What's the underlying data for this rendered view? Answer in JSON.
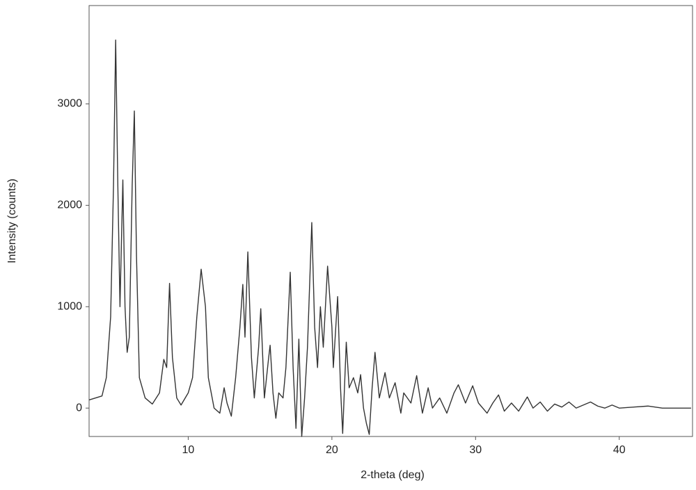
{
  "chart_data": {
    "type": "line",
    "xlabel": "2-theta (deg)",
    "ylabel": "Intensity (counts)",
    "xlim": [
      3.1,
      45.1
    ],
    "ylim": [
      -280,
      3970
    ],
    "xticks": [
      10,
      20,
      30,
      40
    ],
    "yticks": [
      0,
      1000,
      2000,
      3000
    ],
    "grid": false,
    "series": [
      {
        "color": "#333333",
        "x": [
          3.1,
          4.0,
          4.3,
          4.6,
          4.8,
          4.95,
          5.1,
          5.25,
          5.45,
          5.6,
          5.75,
          5.9,
          6.1,
          6.25,
          6.4,
          6.6,
          7.0,
          7.5,
          8.0,
          8.3,
          8.5,
          8.7,
          8.9,
          9.2,
          9.5,
          10.0,
          10.3,
          10.6,
          10.9,
          11.2,
          11.4,
          11.8,
          12.2,
          12.5,
          12.7,
          13.0,
          13.3,
          13.6,
          13.8,
          13.95,
          14.15,
          14.4,
          14.6,
          14.9,
          15.05,
          15.3,
          15.6,
          15.7,
          15.9,
          16.1,
          16.3,
          16.6,
          16.8,
          17.1,
          17.3,
          17.5,
          17.7,
          17.9,
          18.1,
          18.3,
          18.6,
          18.8,
          19.0,
          19.2,
          19.4,
          19.7,
          20.0,
          20.1,
          20.4,
          20.6,
          20.75,
          21.0,
          21.2,
          21.5,
          21.8,
          22.0,
          22.2,
          22.4,
          22.6,
          22.8,
          23.0,
          23.3,
          23.7,
          24.0,
          24.4,
          24.8,
          25.0,
          25.5,
          25.9,
          26.3,
          26.7,
          27.0,
          27.5,
          28.0,
          28.5,
          28.8,
          29.3,
          29.8,
          30.2,
          30.8,
          31.2,
          31.6,
          32.0,
          32.5,
          33.0,
          33.6,
          34.0,
          34.5,
          35.0,
          35.5,
          36.0,
          36.5,
          37.0,
          37.5,
          38.0,
          38.5,
          39.0,
          39.5,
          40.0,
          41.0,
          42.0,
          43.0,
          44.0,
          45.0
        ],
        "values": [
          80,
          120,
          300,
          900,
          2200,
          3630,
          2200,
          1000,
          2250,
          1000,
          550,
          700,
          2200,
          2930,
          1500,
          300,
          100,
          40,
          150,
          480,
          400,
          1230,
          500,
          100,
          30,
          150,
          300,
          900,
          1370,
          1000,
          300,
          0,
          -50,
          200,
          50,
          -80,
          300,
          800,
          1220,
          700,
          1540,
          500,
          100,
          600,
          980,
          100,
          500,
          620,
          150,
          -100,
          150,
          100,
          400,
          1340,
          400,
          -200,
          680,
          -280,
          100,
          600,
          1830,
          800,
          400,
          1000,
          600,
          1400,
          800,
          400,
          1100,
          200,
          -250,
          650,
          200,
          300,
          150,
          330,
          0,
          -150,
          -260,
          200,
          550,
          100,
          350,
          100,
          250,
          -50,
          150,
          50,
          320,
          -50,
          200,
          0,
          100,
          -50,
          150,
          230,
          50,
          220,
          50,
          -50,
          50,
          130,
          -30,
          50,
          -30,
          110,
          0,
          60,
          -30,
          40,
          10,
          60,
          0,
          30,
          60,
          20,
          0,
          30,
          0,
          10,
          20,
          0,
          0,
          0
        ]
      }
    ]
  }
}
